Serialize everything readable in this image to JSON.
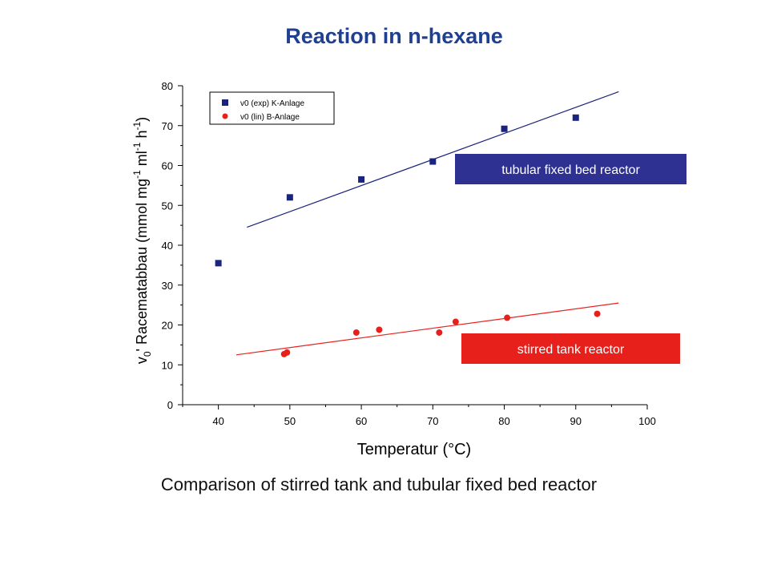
{
  "title": "Reaction in n-hexane",
  "caption": "Comparison of stirred tank and tubular fixed bed reactor",
  "chart_data": {
    "type": "scatter",
    "xlabel": "Temperatur (°C)",
    "ylabel_parts": [
      "v",
      "0",
      "' Racematabbau (mmol mg",
      "-1",
      " ml",
      "-1",
      " h",
      "-1",
      ")"
    ],
    "xlim": [
      35,
      100
    ],
    "ylim": [
      0,
      80
    ],
    "xticks": [
      40,
      50,
      60,
      70,
      80,
      90,
      100
    ],
    "yticks": [
      0,
      10,
      20,
      30,
      40,
      50,
      60,
      70,
      80
    ],
    "grid": false,
    "legend_position": "top-left",
    "series": [
      {
        "name": "v0 (exp) K-Anlage",
        "marker": "square",
        "color": "#1a237e",
        "points": [
          [
            40,
            35.5
          ],
          [
            50,
            52
          ],
          [
            60,
            56.5
          ],
          [
            70,
            61
          ],
          [
            80,
            69.2
          ],
          [
            90,
            72
          ]
        ],
        "fit_line": [
          [
            44,
            44.5
          ],
          [
            96,
            78.5
          ]
        ]
      },
      {
        "name": "v0 (lin) B-Anlage",
        "marker": "circle",
        "color": "#e8201c",
        "points": [
          [
            49.2,
            12.7
          ],
          [
            49.6,
            13.1
          ],
          [
            59.3,
            18.1
          ],
          [
            62.5,
            18.8
          ],
          [
            70.9,
            18.1
          ],
          [
            73.2,
            20.8
          ],
          [
            80.4,
            21.8
          ],
          [
            93,
            22.8
          ]
        ],
        "fit_line": [
          [
            42.5,
            12.5
          ],
          [
            96,
            25.5
          ]
        ]
      }
    ],
    "annotations": [
      {
        "text": "tubular fixed bed reactor",
        "background": "#2e3192",
        "color": "#ffffff"
      },
      {
        "text": "stirred tank reactor",
        "background": "#e8201c",
        "color": "#ffffff"
      }
    ]
  }
}
